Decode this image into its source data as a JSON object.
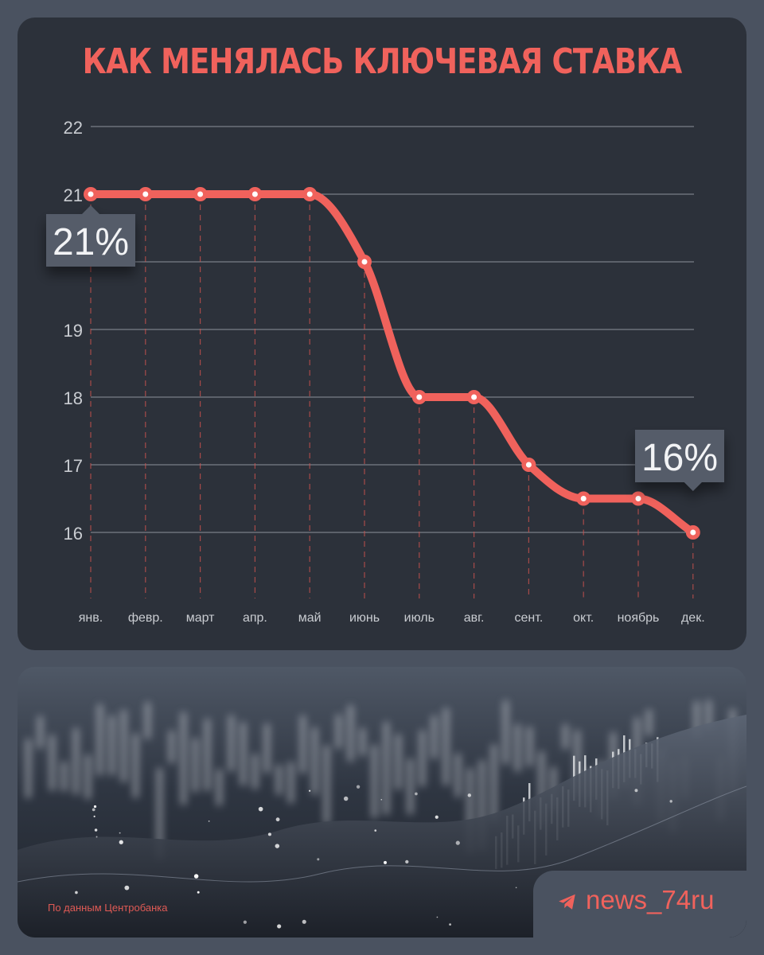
{
  "title": "КАК МЕНЯЛАСЬ КЛЮЧЕВАЯ СТАВКА",
  "chart_data": {
    "type": "line",
    "categories": [
      "янв.",
      "февр.",
      "март",
      "апр.",
      "май",
      "июнь",
      "июль",
      "авг.",
      "сент.",
      "окт.",
      "ноябрь",
      "дек."
    ],
    "values": [
      21,
      21,
      21,
      21,
      21,
      20,
      18,
      18,
      17,
      16.5,
      16.5,
      16
    ],
    "yticks": [
      16,
      17,
      18,
      19,
      21,
      22
    ],
    "ylim": [
      16,
      22
    ],
    "grid": true,
    "line_color": "#f0625c",
    "callouts": [
      {
        "category_index": 0,
        "label": "21%"
      },
      {
        "category_index": 11,
        "label": "16%"
      }
    ]
  },
  "source_note": "По данным Центробанка",
  "brand": {
    "icon": "telegram-icon",
    "text": "news_74ru"
  },
  "colors": {
    "accent": "#f0625c",
    "card": "#2c313a",
    "background": "#4a5260"
  }
}
